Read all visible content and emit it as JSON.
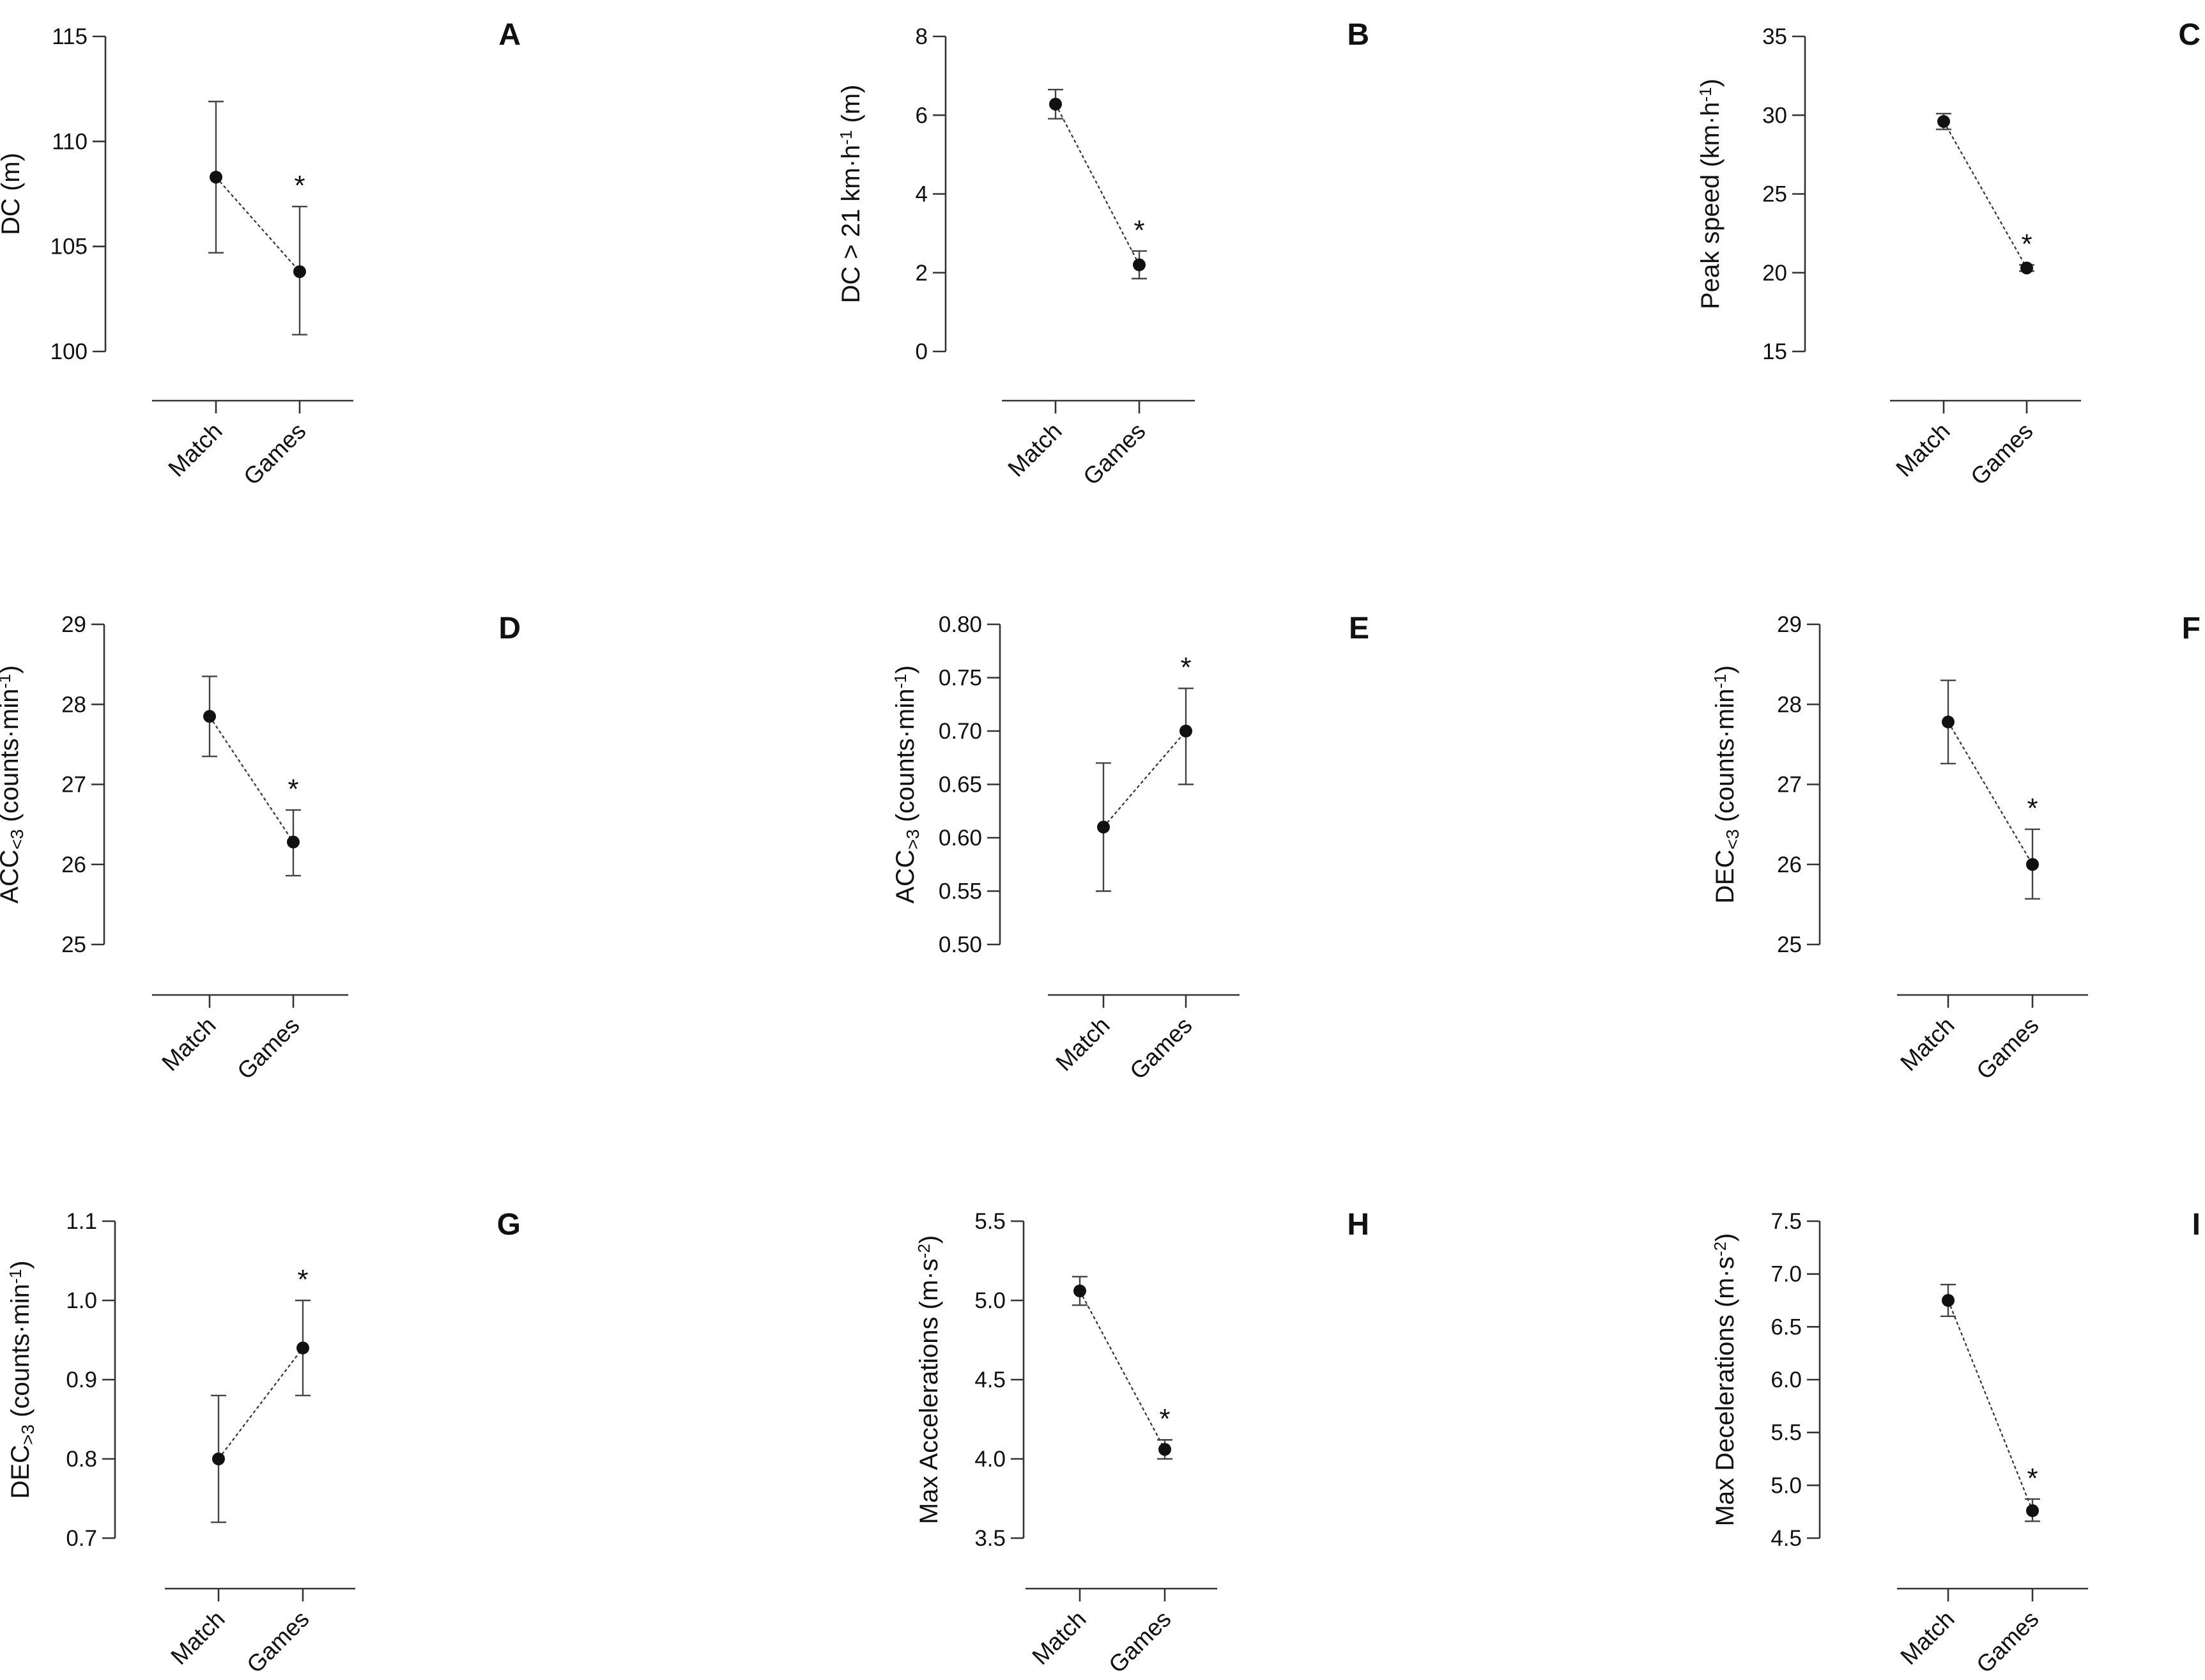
{
  "chart_data": [
    {
      "type": "line",
      "panel_label": "A",
      "ylabel": "DC (m)",
      "categories": [
        "Match",
        "Games"
      ],
      "yticks": [
        "100",
        "105",
        "110",
        "115"
      ],
      "ylim": [
        100,
        115
      ],
      "series": [
        {
          "values": [
            108.3,
            103.8
          ],
          "error_upper": [
            111.9,
            106.9
          ],
          "error_lower": [
            104.7,
            100.8
          ]
        }
      ],
      "significance": [
        "",
        "*"
      ]
    },
    {
      "type": "line",
      "panel_label": "B",
      "ylabel": "DC > 21 km·h",
      "ylabel_sup": "-1",
      "ylabel_end": " (m)",
      "categories": [
        "Match",
        "Games"
      ],
      "yticks": [
        "0",
        "2",
        "4",
        "6",
        "8"
      ],
      "ylim": [
        0,
        8
      ],
      "series": [
        {
          "values": [
            6.28,
            2.2
          ],
          "error_upper": [
            6.65,
            2.55
          ],
          "error_lower": [
            5.91,
            1.85
          ]
        }
      ],
      "significance": [
        "",
        "*"
      ]
    },
    {
      "type": "line",
      "panel_label": "C",
      "ylabel": "Peak speed (km·h",
      "ylabel_sup": "-1",
      "ylabel_end": ")",
      "categories": [
        "Match",
        "Games"
      ],
      "yticks": [
        "15",
        "20",
        "25",
        "30",
        "35"
      ],
      "ylim": [
        15,
        35
      ],
      "series": [
        {
          "values": [
            29.6,
            20.3
          ],
          "error_upper": [
            30.1,
            20.5
          ],
          "error_lower": [
            29.1,
            20.1
          ]
        }
      ],
      "significance": [
        "",
        "*"
      ]
    },
    {
      "type": "line",
      "panel_label": "D",
      "ylabel": "ACC",
      "ylabel_sub": "<3",
      "ylabel_mid": " (counts·min",
      "ylabel_sup": "-1",
      "ylabel_end": ")",
      "categories": [
        "Match",
        "Games"
      ],
      "yticks": [
        "25",
        "26",
        "27",
        "28",
        "29"
      ],
      "ylim": [
        25,
        29
      ],
      "series": [
        {
          "values": [
            27.85,
            26.28
          ],
          "error_upper": [
            28.35,
            26.68
          ],
          "error_lower": [
            27.35,
            25.86
          ]
        }
      ],
      "significance": [
        "",
        "*"
      ]
    },
    {
      "type": "line",
      "panel_label": "E",
      "ylabel": "ACC",
      "ylabel_sub": ">3",
      "ylabel_mid": " (counts·min",
      "ylabel_sup": "-1",
      "ylabel_end": ")",
      "categories": [
        "Match",
        "Games"
      ],
      "yticks": [
        "0.50",
        "0.55",
        "0.60",
        "0.65",
        "0.70",
        "0.75",
        "0.80"
      ],
      "ylim": [
        0.5,
        0.8
      ],
      "series": [
        {
          "values": [
            0.61,
            0.7
          ],
          "error_upper": [
            0.67,
            0.74
          ],
          "error_lower": [
            0.55,
            0.65
          ]
        }
      ],
      "significance": [
        "",
        "*"
      ]
    },
    {
      "type": "line",
      "panel_label": "F",
      "ylabel": "DEC",
      "ylabel_sub": "<3",
      "ylabel_mid": " (counts·min",
      "ylabel_sup": "-1",
      "ylabel_end": ")",
      "categories": [
        "Match",
        "Games"
      ],
      "yticks": [
        "25",
        "26",
        "27",
        "28",
        "29"
      ],
      "ylim": [
        25,
        29
      ],
      "series": [
        {
          "values": [
            27.78,
            26.0
          ],
          "error_upper": [
            28.3,
            26.44
          ],
          "error_lower": [
            27.26,
            25.57
          ]
        }
      ],
      "significance": [
        "",
        "*"
      ]
    },
    {
      "type": "line",
      "panel_label": "G",
      "ylabel": "DEC",
      "ylabel_sub": ">3",
      "ylabel_mid": " (counts·min",
      "ylabel_sup": "-1",
      "ylabel_end": ")",
      "categories": [
        "Match",
        "Games"
      ],
      "yticks": [
        "0.7",
        "0.8",
        "0.9",
        "1.0",
        "1.1"
      ],
      "ylim": [
        0.7,
        1.1
      ],
      "series": [
        {
          "values": [
            0.8,
            0.94
          ],
          "error_upper": [
            0.88,
            1.0
          ],
          "error_lower": [
            0.72,
            0.88
          ]
        }
      ],
      "significance": [
        "",
        "*"
      ]
    },
    {
      "type": "line",
      "panel_label": "H",
      "ylabel": "Max Accelerations (m·s",
      "ylabel_sup": "-2",
      "ylabel_end": ")",
      "categories": [
        "Match",
        "Games"
      ],
      "yticks": [
        "3.5",
        "4.0",
        "4.5",
        "5.0",
        "5.5"
      ],
      "ylim": [
        3.5,
        5.5
      ],
      "series": [
        {
          "values": [
            5.06,
            4.06
          ],
          "error_upper": [
            5.15,
            4.12
          ],
          "error_lower": [
            4.97,
            4.0
          ]
        }
      ],
      "significance": [
        "",
        "*"
      ]
    },
    {
      "type": "line",
      "panel_label": "I",
      "ylabel": "Max Decelerations (m·s",
      "ylabel_sup": "-2",
      "ylabel_end": ")",
      "categories": [
        "Match",
        "Games"
      ],
      "yticks": [
        "4.5",
        "5.0",
        "5.5",
        "6.0",
        "6.5",
        "7.0",
        "7.5"
      ],
      "ylim": [
        4.5,
        7.5
      ],
      "series": [
        {
          "values": [
            6.75,
            4.76
          ],
          "error_upper": [
            6.9,
            4.87
          ],
          "error_lower": [
            6.6,
            4.66
          ]
        }
      ],
      "significance": [
        "",
        "*"
      ]
    }
  ]
}
